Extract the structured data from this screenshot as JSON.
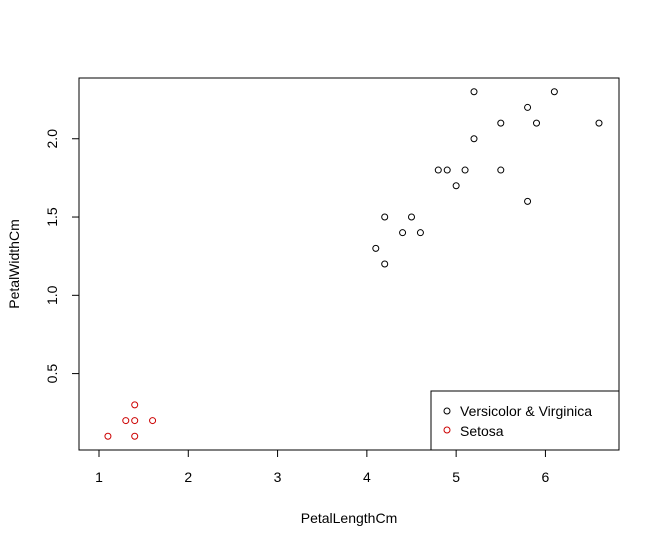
{
  "chart_data": {
    "type": "scatter",
    "title": "",
    "xlabel": "PetalLengthCm",
    "ylabel": "PetalWidthCm",
    "xlim": [
      1.0,
      6.6
    ],
    "ylim": [
      0.1,
      2.3
    ],
    "x_ticks": [
      1,
      2,
      3,
      4,
      5,
      6
    ],
    "y_ticks": [
      0.5,
      1.0,
      1.5,
      2.0
    ],
    "x_tick_labels": [
      "1",
      "2",
      "3",
      "4",
      "5",
      "6"
    ],
    "y_tick_labels": [
      "0.5",
      "1.0",
      "1.5",
      "2.0"
    ],
    "grid": false,
    "legend_position": "bottom-right",
    "series": [
      {
        "name": "Versicolor & Virginica",
        "color": "#000000",
        "marker": "open-circle",
        "points": [
          [
            4.1,
            1.3
          ],
          [
            4.2,
            1.5
          ],
          [
            4.2,
            1.2
          ],
          [
            4.4,
            1.4
          ],
          [
            4.5,
            1.5
          ],
          [
            4.6,
            1.4
          ],
          [
            4.8,
            1.8
          ],
          [
            4.9,
            1.8
          ],
          [
            5.0,
            1.7
          ],
          [
            5.1,
            1.8
          ],
          [
            5.2,
            2.3
          ],
          [
            5.2,
            2.0
          ],
          [
            5.5,
            2.1
          ],
          [
            5.5,
            1.8
          ],
          [
            5.8,
            2.2
          ],
          [
            5.8,
            1.6
          ],
          [
            5.9,
            2.1
          ],
          [
            6.1,
            2.3
          ],
          [
            6.6,
            2.1
          ]
        ]
      },
      {
        "name": "Setosa",
        "color": "#cc0000",
        "marker": "open-circle",
        "points": [
          [
            1.1,
            0.1
          ],
          [
            1.3,
            0.2
          ],
          [
            1.4,
            0.3
          ],
          [
            1.4,
            0.2
          ],
          [
            1.4,
            0.1
          ],
          [
            1.6,
            0.2
          ]
        ]
      }
    ]
  }
}
